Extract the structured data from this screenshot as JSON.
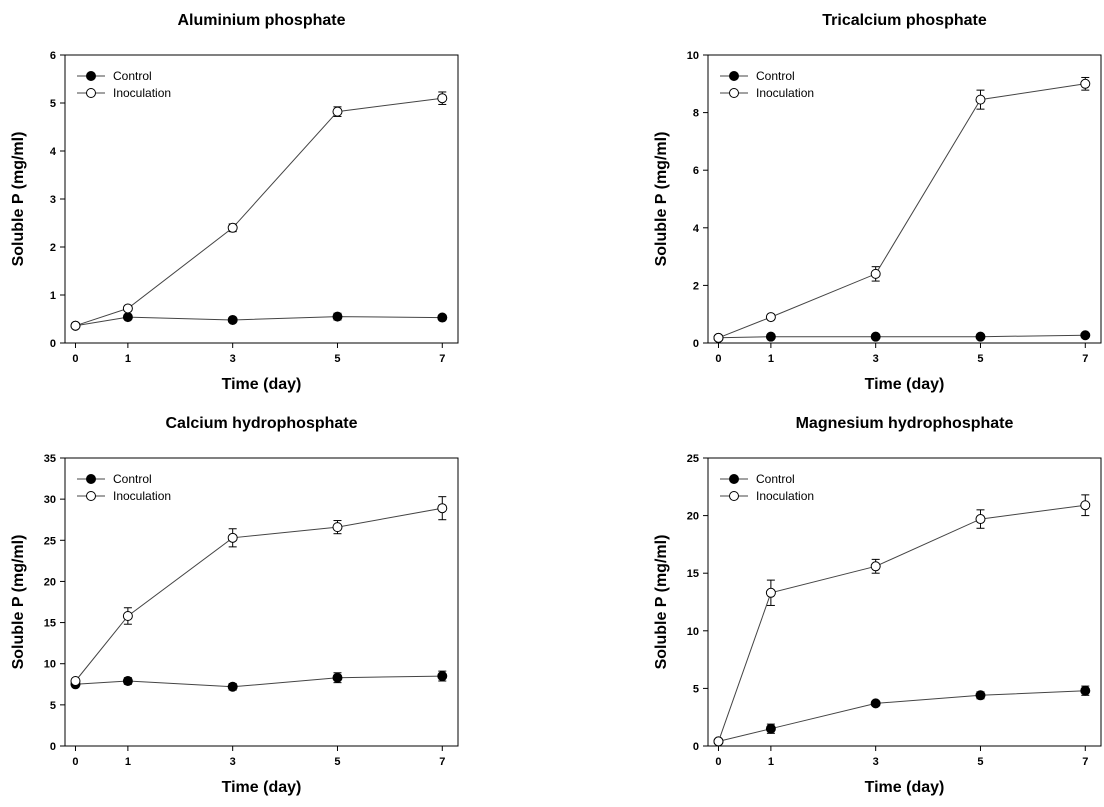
{
  "chart_data": [
    {
      "type": "line",
      "title": "Aluminium phosphate",
      "xlabel": "Time (day)",
      "ylabel": "Soluble P (mg/ml)",
      "xlim": [
        -0.2,
        7.3
      ],
      "ylim": [
        0,
        6
      ],
      "xticks": [
        0,
        1,
        3,
        5,
        7
      ],
      "yticks": [
        0,
        1,
        2,
        3,
        4,
        5,
        6
      ],
      "legend": "top-left",
      "x": [
        0,
        1,
        3,
        5,
        7
      ],
      "series": [
        {
          "name": "Control",
          "marker": "filled-circle",
          "values": [
            0.36,
            0.54,
            0.48,
            0.55,
            0.53
          ],
          "errors": [
            0.02,
            0.04,
            0.03,
            0.07,
            0.05
          ]
        },
        {
          "name": "Inoculation",
          "marker": "open-circle",
          "values": [
            0.36,
            0.72,
            2.4,
            4.82,
            5.1
          ],
          "errors": [
            0.02,
            0.05,
            0.08,
            0.1,
            0.13
          ]
        }
      ]
    },
    {
      "type": "line",
      "title": "Tricalcium phosphate",
      "xlabel": "Time (day)",
      "ylabel": "Soluble P (mg/ml)",
      "xlim": [
        -0.2,
        7.3
      ],
      "ylim": [
        0,
        10
      ],
      "xticks": [
        0,
        1,
        3,
        5,
        7
      ],
      "yticks": [
        0,
        2,
        4,
        6,
        8,
        10
      ],
      "legend": "top-left",
      "x": [
        0,
        1,
        3,
        5,
        7
      ],
      "series": [
        {
          "name": "Control",
          "marker": "filled-circle",
          "values": [
            0.18,
            0.22,
            0.22,
            0.22,
            0.27
          ],
          "errors": [
            0.02,
            0.02,
            0.02,
            0.02,
            0.03
          ]
        },
        {
          "name": "Inoculation",
          "marker": "open-circle",
          "values": [
            0.18,
            0.9,
            2.4,
            8.45,
            9.0
          ],
          "errors": [
            0.02,
            0.05,
            0.25,
            0.33,
            0.22
          ]
        }
      ]
    },
    {
      "type": "line",
      "title": "Calcium hydrophosphate",
      "xlabel": "Time (day)",
      "ylabel": "Soluble P (mg/ml)",
      "xlim": [
        -0.2,
        7.3
      ],
      "ylim": [
        0,
        35
      ],
      "xticks": [
        0,
        1,
        3,
        5,
        7
      ],
      "yticks": [
        0,
        5,
        10,
        15,
        20,
        25,
        30,
        35
      ],
      "legend": "top-left",
      "x": [
        0,
        1,
        3,
        5,
        7
      ],
      "series": [
        {
          "name": "Control",
          "marker": "filled-circle",
          "values": [
            7.5,
            7.9,
            7.2,
            8.3,
            8.5
          ],
          "errors": [
            0.3,
            0.4,
            0.4,
            0.6,
            0.6
          ]
        },
        {
          "name": "Inoculation",
          "marker": "open-circle",
          "values": [
            7.9,
            15.8,
            25.3,
            26.6,
            28.9
          ],
          "errors": [
            0.3,
            1.0,
            1.1,
            0.8,
            1.4
          ]
        }
      ]
    },
    {
      "type": "line",
      "title": "Magnesium hydrophosphate",
      "xlabel": "Time (day)",
      "ylabel": "Soluble P (mg/ml)",
      "xlim": [
        -0.2,
        7.3
      ],
      "ylim": [
        0,
        25
      ],
      "xticks": [
        0,
        1,
        3,
        5,
        7
      ],
      "yticks": [
        0,
        5,
        10,
        15,
        20,
        25
      ],
      "legend": "top-left",
      "x": [
        0,
        1,
        3,
        5,
        7
      ],
      "series": [
        {
          "name": "Control",
          "marker": "filled-circle",
          "values": [
            0.4,
            1.5,
            3.7,
            4.4,
            4.8
          ],
          "errors": [
            0.1,
            0.4,
            0.2,
            0.3,
            0.4
          ]
        },
        {
          "name": "Inoculation",
          "marker": "open-circle",
          "values": [
            0.4,
            13.3,
            15.6,
            19.7,
            20.9
          ],
          "errors": [
            0.1,
            1.1,
            0.6,
            0.8,
            0.9
          ]
        }
      ]
    }
  ]
}
